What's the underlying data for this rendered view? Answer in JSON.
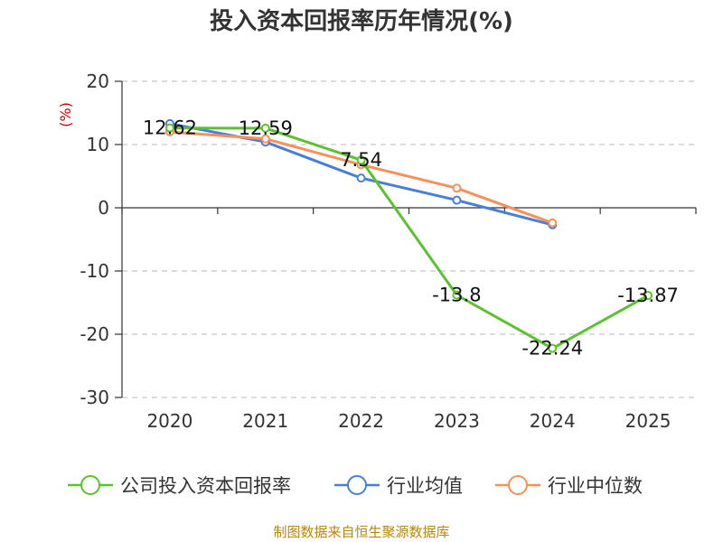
{
  "chart_data": {
    "type": "line",
    "title": "投入资本回报率历年情况(%)",
    "ylabel": "(%)",
    "categories": [
      "2020",
      "2021",
      "2022",
      "2023",
      "2024",
      "2025"
    ],
    "ylim": [
      -30,
      20
    ],
    "yticks": [
      20,
      10,
      0,
      -10,
      -20,
      -30
    ],
    "grid": true,
    "legend_position": "bottom",
    "series": [
      {
        "name": "公司投入资本回报率",
        "color": "#5cc12e",
        "values": [
          12.62,
          12.59,
          7.54,
          -13.8,
          -22.24,
          -13.87
        ],
        "labels": [
          "12.62",
          "12.59",
          "7.54",
          "-13.8",
          "-22.24",
          "-13.87"
        ]
      },
      {
        "name": "行业均值",
        "color": "#4a7fd6",
        "values": [
          13.3,
          10.4,
          4.7,
          1.2,
          -2.7,
          null
        ]
      },
      {
        "name": "行业中位数",
        "color": "#f5915a",
        "values": [
          12.0,
          10.9,
          6.8,
          3.1,
          -2.4,
          null
        ]
      }
    ]
  },
  "source": "制图数据来自恒生聚源数据库"
}
